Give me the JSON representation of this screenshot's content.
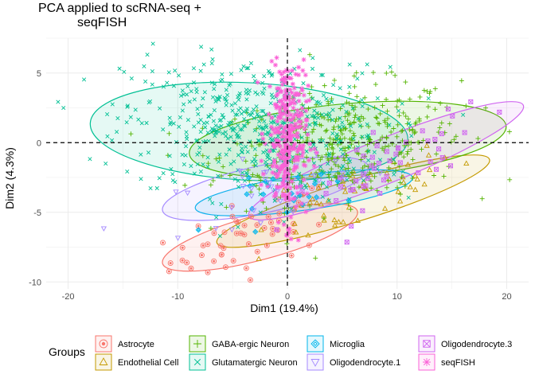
{
  "chart_data": {
    "type": "scatter",
    "title_lines": [
      "PCA applied to scRNA-seq +",
      "seqFISH"
    ],
    "xlabel": "Dim1 (19.4%)",
    "ylabel": "Dim2 (4.3%)",
    "xlim": [
      -22,
      22
    ],
    "ylim": [
      -10.5,
      7.5
    ],
    "x_ticks": [
      -20,
      -10,
      0,
      10,
      20
    ],
    "y_ticks": [
      -10,
      -5,
      0,
      5
    ],
    "grid": true,
    "reference_lines": {
      "x": 0,
      "y": 0,
      "style": "dashed"
    },
    "legend": {
      "title": "Groups",
      "placement": "bottom"
    },
    "series": [
      {
        "name": "Astrocyte",
        "color": "#F8766D",
        "marker": "circle-dot",
        "ellipse": {
          "cx": -2.5,
          "cy": -6.8,
          "rx": 9.2,
          "ry": 1.6,
          "angle_deg": 15
        },
        "cluster": {
          "cx": -3,
          "cy": -6.5,
          "sx": 4,
          "sy": 1.2,
          "n": 55
        }
      },
      {
        "name": "Endothelial Cell",
        "color": "#C49A00",
        "marker": "triangle",
        "ellipse": {
          "cx": 6,
          "cy": -4.2,
          "rx": 13,
          "ry": 1.5,
          "angle_deg": 17
        },
        "cluster": {
          "cx": 6,
          "cy": -4,
          "sx": 5,
          "sy": 1.1,
          "n": 55
        }
      },
      {
        "name": "GABA-ergic Neuron",
        "color": "#53B400",
        "marker": "plus",
        "ellipse": {
          "cx": 5.5,
          "cy": 0.2,
          "rx": 14.5,
          "ry": 2.6,
          "angle_deg": 5
        },
        "cluster": {
          "cx": 5,
          "cy": 0,
          "sx": 5.5,
          "sy": 2,
          "n": 420
        }
      },
      {
        "name": "Glutamatergic Neuron",
        "color": "#00C094",
        "marker": "cross",
        "ellipse": {
          "cx": -3.5,
          "cy": 0.8,
          "rx": 14.5,
          "ry": 3.5,
          "angle_deg": -3
        },
        "cluster": {
          "cx": -3,
          "cy": 1,
          "sx": 6,
          "sy": 2.5,
          "n": 520
        }
      },
      {
        "name": "Microglia",
        "color": "#00B6EB",
        "marker": "diamond",
        "ellipse": {
          "cx": 1.5,
          "cy": -3.6,
          "rx": 10,
          "ry": 1.25,
          "angle_deg": 8
        },
        "cluster": {
          "cx": 1.5,
          "cy": -3.5,
          "sx": 3.5,
          "sy": 0.8,
          "n": 25
        }
      },
      {
        "name": "Oligodendrocyte.1",
        "color": "#A58AFF",
        "marker": "triangle-down",
        "ellipse": {
          "cx": -2,
          "cy": -3.3,
          "rx": 9.6,
          "ry": 1.7,
          "angle_deg": 12
        },
        "cluster": {
          "cx": -2,
          "cy": -3.2,
          "sx": 4,
          "sy": 1.1,
          "n": 35
        }
      },
      {
        "name": "Oligodendrocyte.3",
        "color": "#D066F0",
        "marker": "square-x",
        "ellipse": {
          "cx": 9,
          "cy": -1.3,
          "rx": 13.5,
          "ry": 1.6,
          "angle_deg": 22
        },
        "cluster": {
          "cx": 10,
          "cy": -1.5,
          "sx": 5,
          "sy": 1.2,
          "n": 50
        }
      },
      {
        "name": "seqFISH",
        "color": "#FB61D7",
        "marker": "asterisk",
        "ellipse": null,
        "cluster": {
          "cx": 0,
          "cy": 0.5,
          "sx": 0.9,
          "sy": 3,
          "n": 320
        }
      }
    ]
  }
}
